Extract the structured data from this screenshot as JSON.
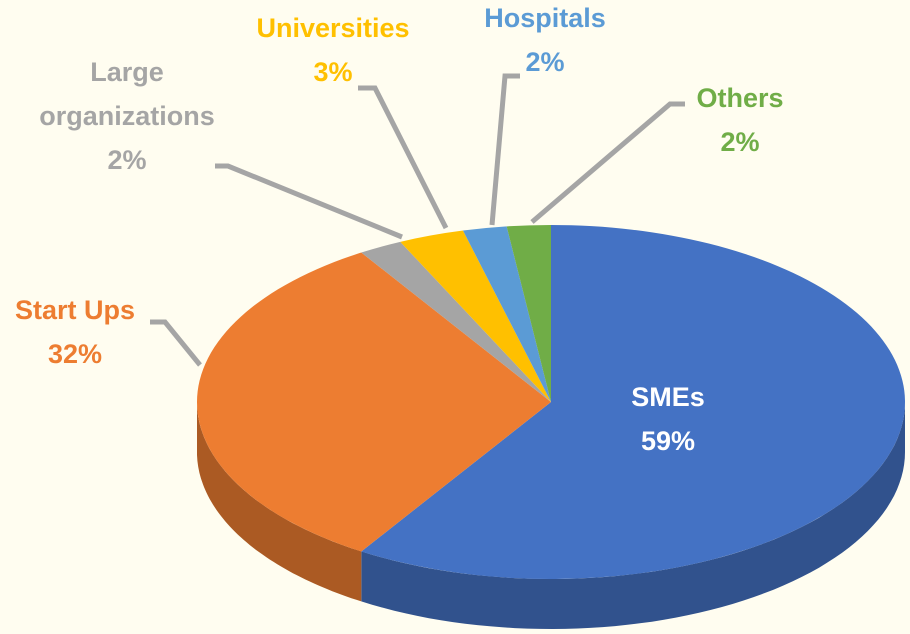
{
  "chart_data": {
    "type": "pie",
    "categories": [
      "SMEs",
      "Start Ups",
      "Large organizations",
      "Universities",
      "Hospitals",
      "Others"
    ],
    "values": [
      59,
      32,
      2,
      3,
      2,
      2
    ],
    "value_labels": [
      "59%",
      "32%",
      "2%",
      "3%",
      "2%",
      "2%"
    ],
    "colors": [
      "#4472c4",
      "#ed7d31",
      "#a5a5a5",
      "#ffc000",
      "#5b9bd5",
      "#70ad47"
    ]
  }
}
